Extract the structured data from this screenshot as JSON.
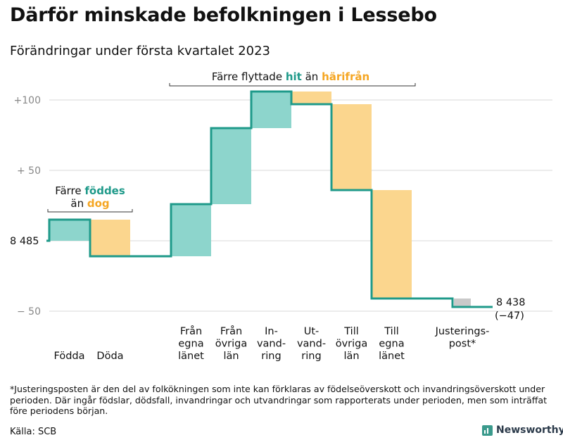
{
  "chart_data": {
    "type": "waterfall",
    "title": "Därför minskade befolkningen i Lessebo",
    "subtitle": "Förändringar under första kvartalet 2023",
    "start_value": 8485,
    "start_label": "8 485",
    "end_value": 8438,
    "end_label": "8 438",
    "end_change_label": "(−47)",
    "y_ticks": [
      {
        "value": 100,
        "label": "+100"
      },
      {
        "value": 50,
        "label": "+ 50"
      },
      {
        "value": 0,
        "label": ""
      },
      {
        "value": -50,
        "label": "− 50"
      }
    ],
    "ylim": [
      -55,
      110
    ],
    "categories": [
      {
        "id": "fodda",
        "label": [
          "Födda"
        ],
        "value": 15
      },
      {
        "id": "doda",
        "label": [
          "Döda"
        ],
        "value": -26
      },
      {
        "id": "fran-egna-lanet",
        "label": [
          "Från",
          "egna",
          "länet"
        ],
        "value": 37
      },
      {
        "id": "fran-ovriga-lan",
        "label": [
          "Från",
          "övriga",
          "län"
        ],
        "value": 54
      },
      {
        "id": "invandring",
        "label": [
          "In-",
          "vand-",
          "ring"
        ],
        "value": 26
      },
      {
        "id": "utvandring",
        "label": [
          "Ut-",
          "vand-",
          "ring"
        ],
        "value": -9
      },
      {
        "id": "till-ovriga-lan",
        "label": [
          "Till",
          "övriga",
          "län"
        ],
        "value": -61
      },
      {
        "id": "till-egna-lanet",
        "label": [
          "Till",
          "egna",
          "länet"
        ],
        "value": -77
      },
      {
        "id": "justeringspost",
        "label": [
          "Justerings-",
          "post*"
        ],
        "value": -6
      }
    ],
    "annotations": {
      "births_deaths": {
        "prefix": "Färre",
        "highlight1": "föddes",
        "middle": "än",
        "highlight2": "dog"
      },
      "migration": {
        "prefix": "Färre flyttade",
        "highlight1": "hit",
        "middle": "än",
        "highlight2": "härifrån"
      }
    },
    "colors": {
      "increase": "#8dd5cc",
      "decrease": "#fbd68e",
      "adjustment": "#c9c9c9",
      "line": "#1f9a8a",
      "highlight_teal": "#1f9a8a",
      "highlight_orange": "#f5a623",
      "grid": "#d9d9d9",
      "tick_label": "#888888"
    }
  },
  "footnote": "*Justeringsposten är den del av folkökningen som inte kan förklaras av födelseöverskott och invandringsöverskott under perioden. Där ingår födslar, dödsfall, invandringar och utvandringar som rapporterats under perioden, men som inträffat före periodens början.",
  "source": "Källa: SCB",
  "brand": "Newsworthy"
}
